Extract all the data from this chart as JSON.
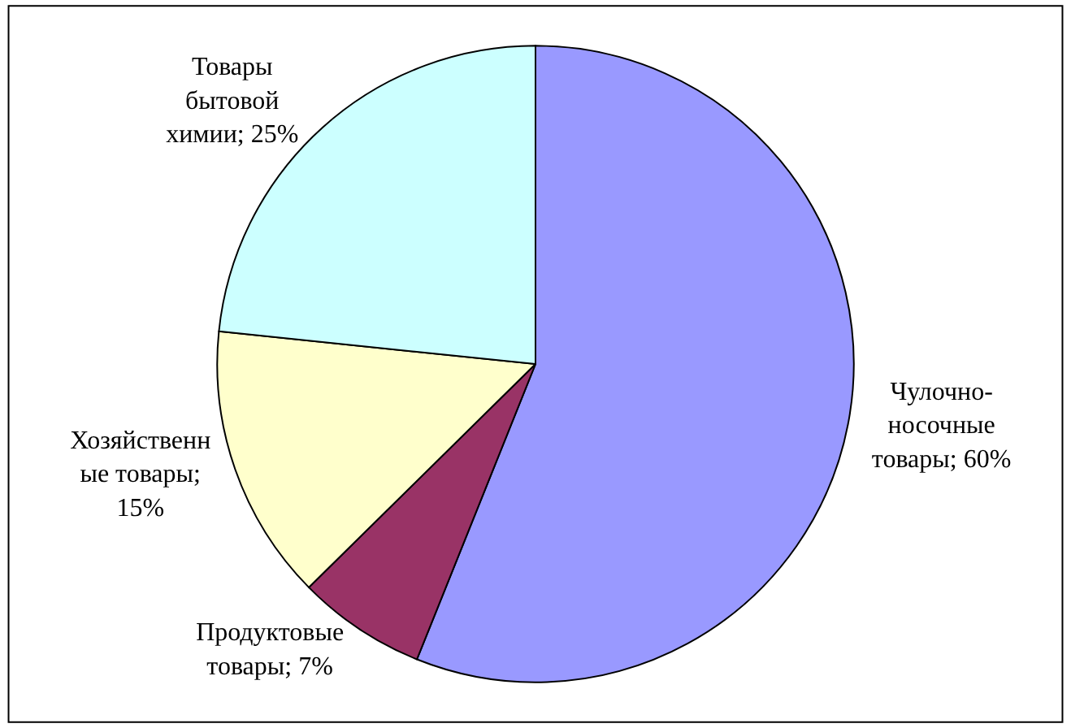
{
  "chart_data": {
    "type": "pie",
    "categories": [
      "Чулочно-носочные товары; 60%",
      "Продуктовые товары; 7%",
      "Хозяйственные товары; 15%",
      "Товары бытовой химии; 25%"
    ],
    "values": [
      60,
      7,
      15,
      25
    ],
    "colors": [
      "#9999ff",
      "#993366",
      "#ffffcc",
      "#ccffff"
    ],
    "legend": false
  }
}
